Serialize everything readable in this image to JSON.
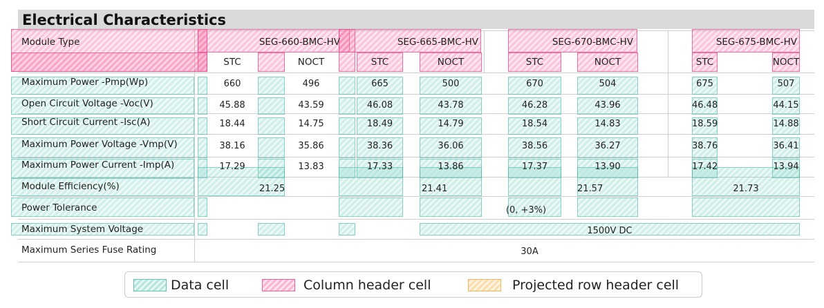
{
  "table": {
    "title": "Electrical Characteristics",
    "module_type_label": "Module Type",
    "models": [
      "SEG-660-BMC-HV",
      "SEG-665-BMC-HV",
      "SEG-670-BMC-HV",
      "SEG-675-BMC-HV"
    ],
    "sub_headers": [
      "STC",
      "NOCT",
      "STC",
      "NOCT",
      "STC",
      "NOCT",
      "STC",
      "NOCT"
    ],
    "rows": [
      {
        "label": "Maximum Power -Pmp(Wp)",
        "values": [
          "660",
          "496",
          "665",
          "500",
          "670",
          "504",
          "675",
          "507"
        ]
      },
      {
        "label": "Open Circuit Voltage -Voc(V)",
        "values": [
          "45.88",
          "43.59",
          "46.08",
          "43.78",
          "46.28",
          "43.96",
          "46.48",
          "44.15"
        ]
      },
      {
        "label": "Short Circuit Current -Isc(A)",
        "values": [
          "18.44",
          "14.75",
          "18.49",
          "14.79",
          "18.54",
          "14.83",
          "18.59",
          "14.88"
        ]
      },
      {
        "label": "Maximum Power Voltage -Vmp(V)",
        "values": [
          "38.16",
          "35.86",
          "38.36",
          "36.06",
          "38.56",
          "36.27",
          "38.76",
          "36.41"
        ]
      },
      {
        "label": "Maximum Power Current -Imp(A)",
        "values": [
          "17.29",
          "13.83",
          "17.33",
          "13.86",
          "17.37",
          "13.90",
          "17.42",
          "13.94"
        ]
      }
    ],
    "efficiency": {
      "label": "Module Efficiency(%)",
      "values": [
        "21.25",
        "21.41",
        "21.57",
        "21.73"
      ]
    },
    "tolerance": {
      "label": "Power Tolerance",
      "value": "(0, +3%)"
    },
    "system_voltage": {
      "label": "Maximum System Voltage",
      "value": "1500V DC"
    },
    "fuse": {
      "label": "Maximum Series Fuse Rating",
      "value": "30A"
    }
  },
  "legend": {
    "items": [
      "Data cell",
      "Column header cell",
      "Projected row header cell"
    ],
    "colors": {
      "data": "#6ecdbe",
      "column_header": "#f578aa",
      "projected_row_header": "#fac878"
    }
  }
}
